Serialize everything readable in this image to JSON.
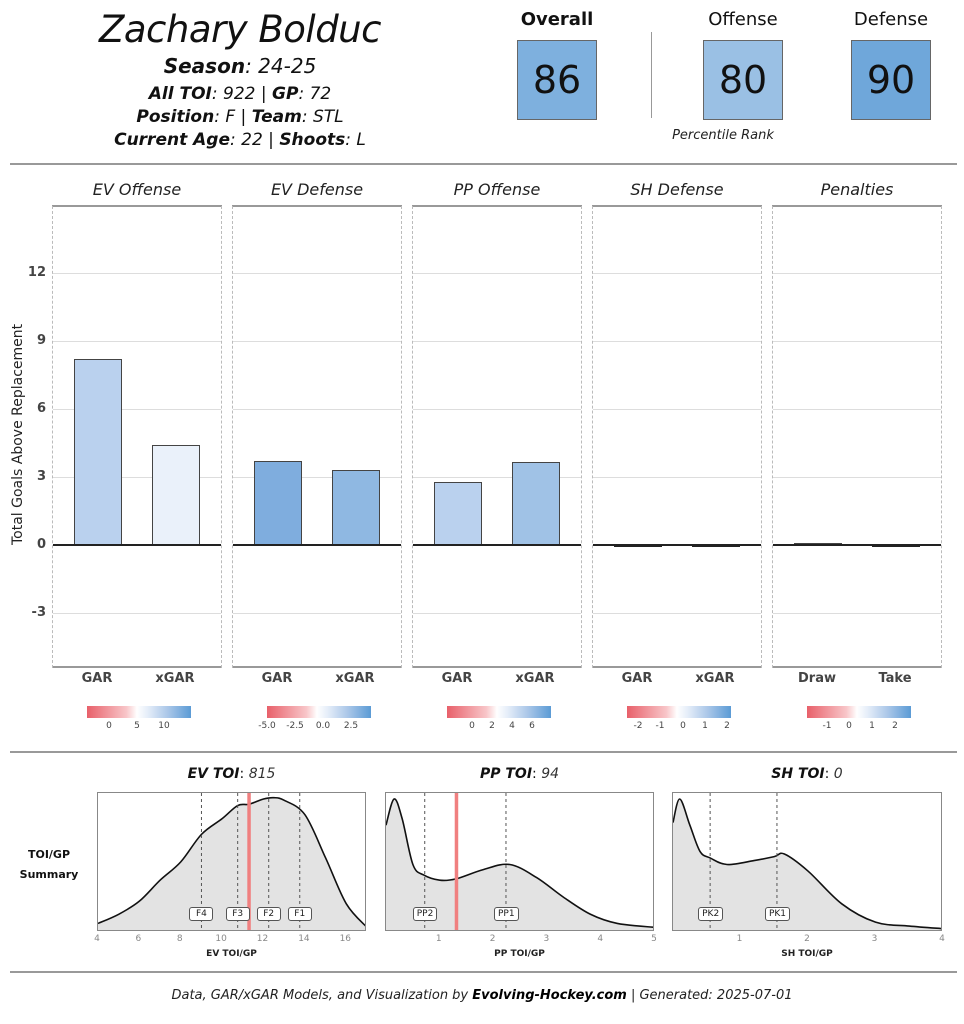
{
  "header": {
    "player_name": "Zachary Bolduc",
    "season_label": "Season",
    "season_value": "24-25",
    "all_toi_label": "All TOI",
    "all_toi_value": "922",
    "gp_label": "GP",
    "gp_value": "72",
    "position_label": "Position",
    "position_value": "F",
    "team_label": "Team",
    "team_value": "STL",
    "age_label": "Current Age",
    "age_value": "22",
    "shoots_label": "Shoots",
    "shoots_value": "L",
    "separator": "|"
  },
  "ranks": {
    "overall": {
      "label": "Overall",
      "value": "86",
      "color": "#7eb0de"
    },
    "offense": {
      "label": "Offense",
      "value": "80",
      "color": "#9ac0e4"
    },
    "defense": {
      "label": "Defense",
      "value": "90",
      "color": "#6fa7da"
    },
    "caption": "Percentile Rank"
  },
  "bar_chart": {
    "ylabel": "Total Goals Above Replacement",
    "yticks": [
      "12",
      "9",
      "6",
      "3",
      "0",
      "-3"
    ],
    "facets": [
      {
        "title": "EV Offense",
        "cats": [
          "GAR",
          "xGAR"
        ],
        "legend_ticks": [
          "0",
          "5",
          "10"
        ]
      },
      {
        "title": "EV Defense",
        "cats": [
          "GAR",
          "xGAR"
        ],
        "legend_ticks": [
          "-5.0",
          "-2.5",
          "0.0",
          "2.5"
        ]
      },
      {
        "title": "PP Offense",
        "cats": [
          "GAR",
          "xGAR"
        ],
        "legend_ticks": [
          "0",
          "2",
          "4",
          "6"
        ]
      },
      {
        "title": "SH Defense",
        "cats": [
          "GAR",
          "xGAR"
        ],
        "legend_ticks": [
          "-2",
          "-1",
          "0",
          "1",
          "2"
        ]
      },
      {
        "title": "Penalties",
        "cats": [
          "Draw",
          "Take"
        ],
        "legend_ticks": [
          "-1",
          "0",
          "1",
          "2"
        ]
      }
    ]
  },
  "density": {
    "side_label_1": "TOI/GP",
    "side_label_2": "Summary",
    "panels": [
      {
        "title_label": "EV TOI",
        "title_value": "815",
        "xlabel": "EV TOI/GP",
        "xticks": [
          "4",
          "6",
          "8",
          "10",
          "12",
          "14",
          "16"
        ],
        "markers": [
          "F4",
          "F3",
          "F2",
          "F1"
        ]
      },
      {
        "title_label": "PP TOI",
        "title_value": "94",
        "xlabel": "PP TOI/GP",
        "xticks": [
          "1",
          "2",
          "3",
          "4",
          "5"
        ],
        "markers": [
          "PP2",
          "PP1"
        ]
      },
      {
        "title_label": "SH TOI",
        "title_value": "0",
        "xlabel": "SH TOI/GP",
        "xticks": [
          "1",
          "2",
          "3",
          "4"
        ],
        "markers": [
          "PK2",
          "PK1"
        ]
      }
    ]
  },
  "footer": {
    "prefix": "Data, GAR/xGAR Models, and Visualization by ",
    "brand": "Evolving-Hockey.com",
    "suffix": " | Generated: 2025-07-01"
  },
  "chart_data": [
    {
      "type": "bar",
      "title": "Total Goals Above Replacement by Component",
      "ylabel": "Total Goals Above Replacement",
      "ylim": [
        -4.5,
        15
      ],
      "yticks": [
        -3,
        0,
        3,
        6,
        9,
        12
      ],
      "grid": true,
      "facets": [
        {
          "name": "EV Offense",
          "categories": [
            "GAR",
            "xGAR"
          ],
          "values": [
            8.2,
            4.4
          ]
        },
        {
          "name": "EV Defense",
          "categories": [
            "GAR",
            "xGAR"
          ],
          "values": [
            3.7,
            3.3
          ]
        },
        {
          "name": "PP Offense",
          "categories": [
            "GAR",
            "xGAR"
          ],
          "values": [
            2.8,
            3.65
          ]
        },
        {
          "name": "SH Defense",
          "categories": [
            "GAR",
            "xGAR"
          ],
          "values": [
            0.0,
            0.0
          ]
        },
        {
          "name": "Penalties",
          "categories": [
            "Draw",
            "Take"
          ],
          "values": [
            0.1,
            0.0
          ]
        }
      ],
      "legend": "color scale per facet (red negative, blue positive)"
    },
    {
      "type": "area",
      "title": "EV TOI: 815",
      "xlabel": "EV TOI/GP",
      "xlim": [
        4,
        17
      ],
      "xticks": [
        4,
        6,
        8,
        10,
        12,
        14,
        16
      ],
      "player_value": 11.3,
      "reference_lines": {
        "F4": 9.0,
        "F3": 10.75,
        "F2": 12.25,
        "F1": 13.75
      },
      "density_shape": {
        "x": [
          4,
          5,
          6,
          7,
          8,
          9,
          10,
          10.75,
          11.3,
          12,
          12.5,
          13,
          14,
          15,
          16,
          17
        ],
        "y": [
          0.05,
          0.12,
          0.22,
          0.38,
          0.52,
          0.73,
          0.85,
          0.95,
          0.96,
          1.0,
          1.01,
          0.99,
          0.88,
          0.55,
          0.2,
          0.02
        ]
      }
    },
    {
      "type": "area",
      "title": "PP TOI: 94",
      "xlabel": "PP TOI/GP",
      "xlim": [
        0,
        5
      ],
      "xticks": [
        1,
        2,
        3,
        4,
        5
      ],
      "player_value": 1.31,
      "reference_lines": {
        "PP2": 0.72,
        "PP1": 2.23
      },
      "density_shape": {
        "x": [
          0,
          0.15,
          0.3,
          0.5,
          0.7,
          1.0,
          1.3,
          1.8,
          2.3,
          2.8,
          3.3,
          3.8,
          4.3,
          5.0
        ],
        "y": [
          0.8,
          1.0,
          0.85,
          0.5,
          0.42,
          0.38,
          0.39,
          0.46,
          0.5,
          0.4,
          0.25,
          0.12,
          0.05,
          0.02
        ]
      }
    },
    {
      "type": "area",
      "title": "SH TOI: 0",
      "xlabel": "SH TOI/GP",
      "xlim": [
        0,
        4
      ],
      "xticks": [
        1,
        2,
        3,
        4
      ],
      "player_value": 0,
      "reference_lines": {
        "PK2": 0.55,
        "PK1": 1.54
      },
      "density_shape": {
        "x": [
          0,
          0.1,
          0.25,
          0.4,
          0.55,
          0.8,
          1.2,
          1.5,
          1.65,
          2.0,
          2.5,
          3.0,
          3.5,
          4.0
        ],
        "y": [
          0.82,
          1.0,
          0.8,
          0.6,
          0.55,
          0.5,
          0.53,
          0.56,
          0.58,
          0.45,
          0.2,
          0.06,
          0.03,
          0.01
        ]
      }
    }
  ]
}
